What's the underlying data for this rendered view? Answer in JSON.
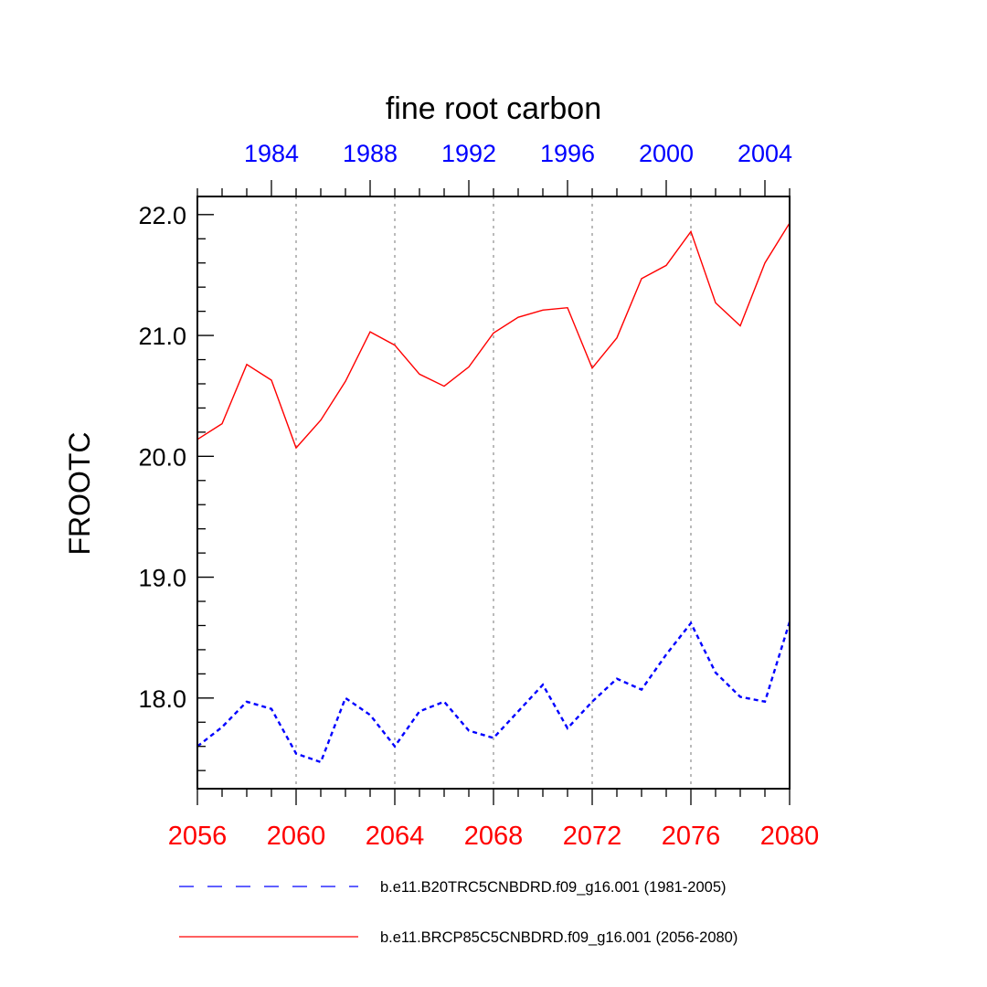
{
  "chart_data": {
    "type": "line",
    "title": "fine root carbon",
    "ylabel": "FROOTC",
    "ylim": [
      17.25,
      22.15
    ],
    "yticks": [
      18.0,
      19.0,
      20.0,
      21.0,
      22.0
    ],
    "ytick_labels": [
      "18.0",
      "19.0",
      "20.0",
      "21.0",
      "22.0"
    ],
    "x_bottom": {
      "range": [
        2056,
        2080
      ],
      "ticks": [
        2056,
        2060,
        2064,
        2068,
        2072,
        2076,
        2080
      ],
      "tick_labels": [
        "2056",
        "2060",
        "2064",
        "2068",
        "2072",
        "2076",
        "2080"
      ],
      "color": "#ff0000"
    },
    "x_top": {
      "range": [
        1981,
        2005
      ],
      "ticks": [
        1984,
        1988,
        1992,
        1996,
        2000,
        2004
      ],
      "tick_labels": [
        "1984",
        "1988",
        "1992",
        "1996",
        "2000",
        "2004"
      ],
      "color": "#0000ff"
    },
    "gridlines_x": [
      2060,
      2064,
      2068,
      2072,
      2076
    ],
    "series": [
      {
        "name": "b.e11.BRCP85C5CNBDRD.f09_g16.001 (2056-2080)",
        "axis": "bottom",
        "color": "#ff0000",
        "dash": "solid",
        "x": [
          2056,
          2057,
          2058,
          2059,
          2060,
          2061,
          2062,
          2063,
          2064,
          2065,
          2066,
          2067,
          2068,
          2069,
          2070,
          2071,
          2072,
          2073,
          2074,
          2075,
          2076,
          2077,
          2078,
          2079,
          2080
        ],
        "values": [
          20.14,
          20.27,
          20.76,
          20.63,
          20.07,
          20.3,
          20.62,
          21.03,
          20.92,
          20.68,
          20.58,
          20.74,
          21.02,
          21.15,
          21.21,
          21.23,
          20.73,
          20.98,
          21.47,
          21.58,
          21.86,
          21.27,
          21.08,
          21.6,
          21.93
        ]
      },
      {
        "name": "b.e11.B20TRC5CNBDRD.f09_g16.001 (1981-2005)",
        "axis": "top",
        "color": "#0000ff",
        "dash": "dashed",
        "x": [
          1981,
          1982,
          1983,
          1984,
          1985,
          1986,
          1987,
          1988,
          1989,
          1990,
          1991,
          1992,
          1993,
          1994,
          1995,
          1996,
          1997,
          1998,
          1999,
          2000,
          2001,
          2002,
          2003,
          2004,
          2005
        ],
        "values": [
          17.6,
          17.76,
          17.97,
          17.91,
          17.54,
          17.47,
          18.0,
          17.86,
          17.6,
          17.89,
          17.97,
          17.73,
          17.67,
          17.89,
          18.11,
          17.75,
          17.97,
          18.16,
          18.07,
          18.36,
          18.62,
          18.21,
          18.01,
          17.97,
          18.63
        ]
      }
    ],
    "legend": {
      "placement": "bottom",
      "entries": [
        {
          "label": "b.e11.B20TRC5CNBDRD.f09_g16.001 (1981-2005)",
          "color": "#0000ff",
          "dash": "dashed"
        },
        {
          "label": "b.e11.BRCP85C5CNBDRD.f09_g16.001 (2056-2080)",
          "color": "#ff0000",
          "dash": "solid"
        }
      ]
    }
  }
}
